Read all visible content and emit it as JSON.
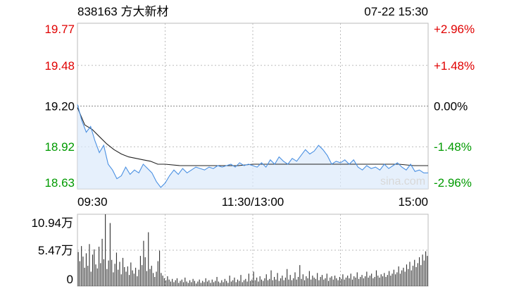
{
  "header": {
    "stock": "838163 方大新材",
    "datetime": "07-22 15:30"
  },
  "watermark": "sina.com",
  "colors": {
    "up": "#e00000",
    "down": "#009a00",
    "flat": "#000000",
    "price_line": "#4a90e2",
    "avg_line": "#222222",
    "volume_bar": "#333333",
    "grid": "#bbbbbb",
    "area_fill": "#dce9fb"
  },
  "chart_data": [
    {
      "type": "line",
      "title": "",
      "prev_close": 19.2,
      "ylim": [
        18.63,
        19.77
      ],
      "y_ticks_left": [
        "19.77",
        "19.48",
        "19.20",
        "18.92",
        "18.63"
      ],
      "y_ticks_right": [
        "+2.96%",
        "+1.48%",
        "0.00%",
        "-1.48%",
        "-2.96%"
      ],
      "x_ticks": [
        "09:30",
        "11:30/13:00",
        "15:00"
      ],
      "grid": true,
      "x_minutes": 240,
      "series": [
        {
          "key": "price",
          "values": [
            [
              0,
              19.21
            ],
            [
              3,
              19.1
            ],
            [
              6,
              19.02
            ],
            [
              9,
              19.06
            ],
            [
              12,
              18.96
            ],
            [
              15,
              18.88
            ],
            [
              18,
              18.93
            ],
            [
              21,
              18.8
            ],
            [
              24,
              18.76
            ],
            [
              27,
              18.7
            ],
            [
              30,
              18.72
            ],
            [
              33,
              18.78
            ],
            [
              36,
              18.73
            ],
            [
              39,
              18.76
            ],
            [
              42,
              18.74
            ],
            [
              45,
              18.8
            ],
            [
              48,
              18.77
            ],
            [
              51,
              18.74
            ],
            [
              54,
              18.68
            ],
            [
              57,
              18.64
            ],
            [
              60,
              18.67
            ],
            [
              63,
              18.72
            ],
            [
              66,
              18.76
            ],
            [
              69,
              18.73
            ],
            [
              72,
              18.77
            ],
            [
              75,
              18.74
            ],
            [
              78,
              18.76
            ],
            [
              81,
              18.78
            ],
            [
              84,
              18.77
            ],
            [
              87,
              18.76
            ],
            [
              90,
              18.78
            ],
            [
              93,
              18.77
            ],
            [
              96,
              18.79
            ],
            [
              99,
              18.78
            ],
            [
              102,
              18.79
            ],
            [
              105,
              18.8
            ],
            [
              108,
              18.78
            ],
            [
              111,
              18.81
            ],
            [
              114,
              18.79
            ],
            [
              117,
              18.8
            ],
            [
              120,
              18.79
            ],
            [
              123,
              18.78
            ],
            [
              126,
              18.81
            ],
            [
              129,
              18.78
            ],
            [
              132,
              18.83
            ],
            [
              135,
              18.8
            ],
            [
              138,
              18.85
            ],
            [
              141,
              18.82
            ],
            [
              144,
              18.8
            ],
            [
              147,
              18.84
            ],
            [
              150,
              18.82
            ],
            [
              153,
              18.86
            ],
            [
              156,
              18.9
            ],
            [
              159,
              18.87
            ],
            [
              162,
              18.89
            ],
            [
              165,
              18.93
            ],
            [
              168,
              18.9
            ],
            [
              171,
              18.86
            ],
            [
              174,
              18.8
            ],
            [
              177,
              18.82
            ],
            [
              180,
              18.81
            ],
            [
              183,
              18.83
            ],
            [
              186,
              18.8
            ],
            [
              189,
              18.83
            ],
            [
              192,
              18.78
            ],
            [
              195,
              18.76
            ],
            [
              198,
              18.79
            ],
            [
              201,
              18.77
            ],
            [
              204,
              18.78
            ],
            [
              207,
              18.76
            ],
            [
              210,
              18.8
            ],
            [
              213,
              18.77
            ],
            [
              216,
              18.79
            ],
            [
              219,
              18.81
            ],
            [
              222,
              18.78
            ],
            [
              225,
              18.76
            ],
            [
              228,
              18.8
            ],
            [
              231,
              18.75
            ],
            [
              234,
              18.76
            ],
            [
              237,
              18.74
            ],
            [
              240,
              18.74
            ]
          ]
        },
        {
          "key": "average",
          "values": [
            [
              0,
              19.19
            ],
            [
              5,
              19.07
            ],
            [
              10,
              19.04
            ],
            [
              15,
              18.99
            ],
            [
              20,
              18.94
            ],
            [
              25,
              18.9
            ],
            [
              30,
              18.87
            ],
            [
              35,
              18.85
            ],
            [
              40,
              18.84
            ],
            [
              45,
              18.83
            ],
            [
              50,
              18.82
            ],
            [
              55,
              18.8
            ],
            [
              60,
              18.8
            ],
            [
              70,
              18.79
            ],
            [
              80,
              18.79
            ],
            [
              90,
              18.79
            ],
            [
              100,
              18.79
            ],
            [
              110,
              18.79
            ],
            [
              120,
              18.8
            ],
            [
              130,
              18.8
            ],
            [
              140,
              18.8
            ],
            [
              150,
              18.8
            ],
            [
              160,
              18.8
            ],
            [
              170,
              18.8
            ],
            [
              180,
              18.8
            ],
            [
              190,
              18.8
            ],
            [
              200,
              18.8
            ],
            [
              210,
              18.8
            ],
            [
              220,
              18.8
            ],
            [
              230,
              18.79
            ],
            [
              240,
              18.79
            ]
          ]
        }
      ]
    },
    {
      "type": "bar",
      "title": "",
      "ylim": [
        0,
        10.94
      ],
      "y_ticks": [
        "10.94万",
        "5.47万",
        "0"
      ],
      "x_minutes": 240,
      "values": [
        5.2,
        3.8,
        6.1,
        4.5,
        2.8,
        5.0,
        3.1,
        6.4,
        2.2,
        4.8,
        5.6,
        3.3,
        2.7,
        6.0,
        3.5,
        7.2,
        4.1,
        11.0,
        2.6,
        3.9,
        9.6,
        4.0,
        2.1,
        3.4,
        5.1,
        2.5,
        3.7,
        1.8,
        4.3,
        2.9,
        2.2,
        3.0,
        1.7,
        3.6,
        2.4,
        1.9,
        2.8,
        1.5,
        2.5,
        4.6,
        3.2,
        6.9,
        4.4,
        2.3,
        8.2,
        2.6,
        3.1,
        2.0,
        1.4,
        2.2,
        3.8,
        5.4,
        2.0,
        1.6,
        1.2,
        0.9,
        1.5,
        1.0,
        0.7,
        1.1,
        0.6,
        0.9,
        1.2,
        0.5,
        0.8,
        1.0,
        0.6,
        1.3,
        0.7,
        0.5,
        0.9,
        0.6,
        1.1,
        0.8,
        0.4,
        0.7,
        1.0,
        0.5,
        0.8,
        0.6,
        1.2,
        0.7,
        0.9,
        0.5,
        1.0,
        0.6,
        0.8,
        1.4,
        0.7,
        0.5,
        0.9,
        0.6,
        1.1,
        0.8,
        0.5,
        1.6,
        0.7,
        0.9,
        1.3,
        0.6,
        1.0,
        0.8,
        1.7,
        0.6,
        0.9,
        1.1,
        0.7,
        1.9,
        0.8,
        1.0,
        2.2,
        0.9,
        1.3,
        0.7,
        1.5,
        1.0,
        0.8,
        1.2,
        1.8,
        0.9,
        1.1,
        2.4,
        0.9,
        1.4,
        1.0,
        2.0,
        0.8,
        1.2,
        1.6,
        0.9,
        1.3,
        2.6,
        1.0,
        1.7,
        0.9,
        1.2,
        2.1,
        1.0,
        1.4,
        3.2,
        1.1,
        1.8,
        0.9,
        1.5,
        1.2,
        2.3,
        1.0,
        1.6,
        1.3,
        1.1,
        2.0,
        0.9,
        1.4,
        1.7,
        1.0,
        1.2,
        1.9,
        0.8,
        1.3,
        1.5,
        1.0,
        1.6,
        1.2,
        0.9,
        1.4,
        1.1,
        1.8,
        1.0,
        1.3,
        1.6,
        1.2,
        1.9,
        1.0,
        1.5,
        1.3,
        2.1,
        1.1,
        1.4,
        1.7,
        1.2,
        1.5,
        2.2,
        1.3,
        1.6,
        1.9,
        1.2,
        1.4,
        2.4,
        1.6,
        1.3,
        1.8,
        1.5,
        2.0,
        1.4,
        1.7,
        2.3,
        1.6,
        1.9,
        2.5,
        1.8,
        2.1,
        3.0,
        1.9,
        2.4,
        2.8,
        2.2,
        3.3,
        2.6,
        3.7,
        2.4,
        3.1,
        4.0,
        2.9,
        3.5,
        4.4,
        3.2,
        4.8,
        3.9,
        5.3,
        4.6
      ]
    }
  ]
}
